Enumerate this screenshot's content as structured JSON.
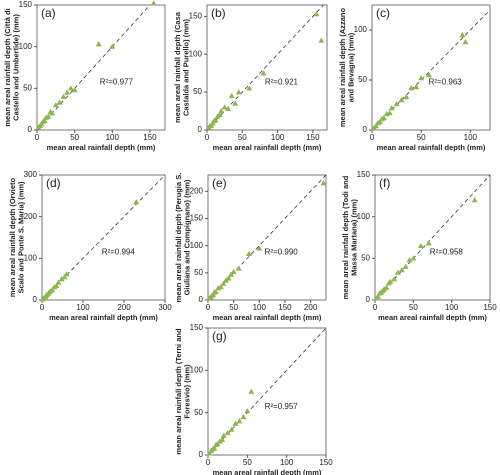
{
  "chart_data": [
    {
      "type": "scatter",
      "label": "(a)",
      "ylabel": [
        "mean areal rainfall depth (Città di",
        "Castello and Umbertide) (mm)"
      ],
      "xlabel": "mean areal rainfall depth (mm)",
      "annotation": "R²=0.977",
      "color": "#8db550",
      "x": [
        2,
        4,
        6,
        8,
        10,
        12,
        15,
        18,
        20,
        25,
        30,
        35,
        40,
        45,
        50,
        82,
        100,
        155
      ],
      "y": [
        3,
        5,
        7,
        10,
        11,
        15,
        16,
        22,
        20,
        30,
        33,
        40,
        45,
        50,
        48,
        103,
        100,
        152
      ],
      "xlim": [
        0,
        170
      ],
      "ylim": [
        0,
        150
      ],
      "xticks": [
        0,
        50,
        100,
        150
      ],
      "yticks": [
        0,
        50,
        100,
        150
      ]
    },
    {
      "type": "scatter",
      "label": "(b)",
      "ylabel": [
        "mean areal rainfall depth (Casa",
        "Castalda and Purello) (mm)"
      ],
      "xlabel": "mean areal rainfall depth (mm)",
      "annotation": "R²=0.921",
      "color": "#8db550",
      "x": [
        2,
        4,
        6,
        8,
        10,
        12,
        15,
        18,
        20,
        25,
        30,
        35,
        40,
        45,
        60,
        80,
        155,
        162
      ],
      "y": [
        3,
        5,
        6,
        9,
        12,
        13,
        18,
        20,
        25,
        30,
        28,
        45,
        35,
        50,
        55,
        75,
        153,
        118
      ],
      "xlim": [
        0,
        170
      ],
      "ylim": [
        0,
        165
      ],
      "xticks": [
        0,
        50,
        100,
        150
      ],
      "yticks": [
        0,
        50,
        100,
        150
      ]
    },
    {
      "type": "scatter",
      "label": "(c)",
      "ylabel": [
        "mean areal rainfall depth (Azzano",
        "and Bevagna) (mm)"
      ],
      "xlabel": "mean areal rainfall depth (mm)",
      "annotation": "R²=0.963",
      "color": "#8db550",
      "x": [
        2,
        4,
        6,
        8,
        10,
        12,
        15,
        18,
        20,
        25,
        30,
        35,
        40,
        45,
        50,
        58,
        92,
        95
      ],
      "y": [
        2,
        4,
        7,
        8,
        11,
        12,
        16,
        17,
        22,
        26,
        30,
        33,
        42,
        43,
        52,
        55,
        95,
        88
      ],
      "xlim": [
        0,
        120
      ],
      "ylim": [
        0,
        125
      ],
      "xticks": [
        0,
        50,
        100
      ],
      "yticks": [
        0,
        50,
        100
      ]
    },
    {
      "type": "scatter",
      "label": "(d)",
      "ylabel": [
        "mean areal rainfall depth (Orvieto",
        "Scalo and Ponte S. Maria) (mm)"
      ],
      "xlabel": "mean areal rainfall depth (mm)",
      "annotation": "R²=0.994",
      "color": "#8db550",
      "x": [
        2,
        5,
        8,
        10,
        12,
        15,
        18,
        20,
        25,
        30,
        35,
        40,
        48,
        55,
        60,
        230
      ],
      "y": [
        2,
        5,
        7,
        11,
        12,
        15,
        19,
        21,
        24,
        31,
        34,
        42,
        50,
        55,
        62,
        235
      ],
      "xlim": [
        0,
        300
      ],
      "ylim": [
        0,
        300
      ],
      "xticks": [
        0,
        100,
        200,
        300
      ],
      "yticks": [
        0,
        100,
        200,
        300
      ]
    },
    {
      "type": "scatter",
      "label": "(e)",
      "ylabel": [
        "mean areal rainfall depth (Perugia S.",
        "Giuliana and Compignano) (mm)"
      ],
      "xlabel": "mean areal rainfall depth (mm)",
      "annotation": "R²=0.990",
      "color": "#8db550",
      "x": [
        2,
        5,
        8,
        10,
        12,
        15,
        20,
        25,
        30,
        35,
        40,
        45,
        50,
        60,
        80,
        100,
        225
      ],
      "y": [
        3,
        5,
        8,
        10,
        14,
        15,
        22,
        24,
        30,
        36,
        40,
        47,
        52,
        58,
        85,
        95,
        215
      ],
      "xlim": [
        0,
        230
      ],
      "ylim": [
        0,
        230
      ],
      "xticks": [
        0,
        50,
        100,
        150,
        200
      ],
      "yticks": [
        0,
        50,
        100,
        150,
        200
      ]
    },
    {
      "type": "scatter",
      "label": "(f)",
      "ylabel": [
        "mean areal rainfall depth (Todi and",
        "Massa Martana) (mm)"
      ],
      "xlabel": "mean areal rainfall depth (mm)",
      "annotation": "R²=0.958",
      "color": "#8db550",
      "x": [
        2,
        4,
        6,
        8,
        10,
        12,
        15,
        18,
        20,
        25,
        30,
        35,
        40,
        45,
        50,
        60,
        70,
        130
      ],
      "y": [
        2,
        4,
        8,
        9,
        11,
        13,
        15,
        20,
        22,
        25,
        33,
        36,
        40,
        48,
        50,
        65,
        68,
        120
      ],
      "xlim": [
        0,
        150
      ],
      "ylim": [
        0,
        150
      ],
      "xticks": [
        0,
        50,
        100,
        150
      ],
      "yticks": [
        0,
        50,
        100,
        150
      ]
    },
    {
      "type": "scatter",
      "label": "(g)",
      "ylabel": [
        "mean areal rainfall depth (Terni and",
        "Foresvio) (mm)"
      ],
      "xlabel": "mean areal rainfall depth (mm)",
      "annotation": "R²=0.957",
      "color": "#8db550",
      "x": [
        2,
        4,
        6,
        8,
        10,
        12,
        15,
        18,
        20,
        25,
        30,
        35,
        40,
        45,
        50,
        55
      ],
      "y": [
        2,
        5,
        7,
        8,
        12,
        13,
        16,
        18,
        23,
        26,
        30,
        37,
        40,
        45,
        52,
        75
      ],
      "xlim": [
        0,
        150
      ],
      "ylim": [
        0,
        150
      ],
      "xticks": [
        0,
        50,
        100,
        150
      ],
      "yticks": [
        0,
        50,
        100,
        150
      ]
    }
  ]
}
